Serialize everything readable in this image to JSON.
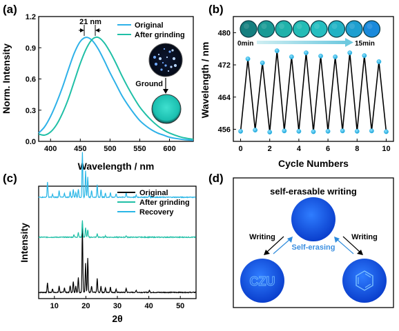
{
  "colors": {
    "original": "#2db1e8",
    "ground": "#1fbfa6",
    "recovery": "#29b6e6",
    "black": "#000000"
  },
  "panels": {
    "a": {
      "label": "(a)",
      "shift_annotation": "21 nm",
      "inset_arrow_label": "Ground",
      "inset_top": "blue-luminescent-crystals-photo",
      "inset_bottom": "cyan-luminescent-powder-photo"
    },
    "b": {
      "label": "(b)",
      "time_start": "0min",
      "time_end": "15min",
      "photo_strip": "eight-sample-photos-blue-to-cyan"
    },
    "c": {
      "label": "(c)"
    },
    "d": {
      "label": "(d)",
      "title": "self-erasable-writing",
      "title_text": "self-erasable writing",
      "left_arrow_label": "Writing",
      "right_arrow_label": "Writing",
      "center_label": "Self-erasing",
      "left_disc_text": "CZU",
      "right_disc_symbol": "benzene-ring-icon"
    }
  },
  "chart_data": [
    {
      "type": "line",
      "panel": "a",
      "xlabel": "Wavelength / nm",
      "ylabel": "Norm. Intensity",
      "xlim": [
        380,
        640
      ],
      "ylim": [
        0,
        1.2
      ],
      "xticks": [
        400,
        450,
        500,
        550,
        600
      ],
      "yticks": [
        0.0,
        0.3,
        0.6,
        0.9,
        1.2
      ],
      "legend_position": "top-right",
      "series": [
        {
          "name": "Original",
          "color": "#2db1e8",
          "x": [
            380,
            390,
            400,
            410,
            420,
            430,
            440,
            450,
            460,
            470,
            480,
            490,
            500,
            510,
            520,
            530,
            540,
            550,
            560,
            570,
            580,
            590,
            600,
            620,
            640
          ],
          "y": [
            0.08,
            0.14,
            0.24,
            0.37,
            0.52,
            0.69,
            0.85,
            0.96,
            1.0,
            0.97,
            0.89,
            0.78,
            0.66,
            0.55,
            0.44,
            0.35,
            0.27,
            0.2,
            0.15,
            0.11,
            0.08,
            0.06,
            0.04,
            0.02,
            0.01
          ]
        },
        {
          "name": "After grinding",
          "color": "#1fbfa6",
          "x": [
            380,
            390,
            400,
            410,
            420,
            430,
            440,
            450,
            460,
            470,
            480,
            490,
            500,
            510,
            520,
            530,
            540,
            550,
            560,
            570,
            580,
            590,
            600,
            620,
            640
          ],
          "y": [
            0.07,
            0.06,
            0.09,
            0.16,
            0.27,
            0.41,
            0.58,
            0.75,
            0.89,
            0.98,
            1.0,
            0.95,
            0.86,
            0.75,
            0.63,
            0.52,
            0.42,
            0.33,
            0.26,
            0.2,
            0.15,
            0.11,
            0.08,
            0.04,
            0.02
          ]
        }
      ]
    },
    {
      "type": "line",
      "panel": "b",
      "xlabel": "Cycle Numbers",
      "ylabel": "Wavelength / nm",
      "xlim": [
        -0.5,
        10.5
      ],
      "ylim": [
        453,
        484
      ],
      "xticks": [
        0,
        2,
        4,
        6,
        8,
        10
      ],
      "yticks": [
        456,
        464,
        472,
        480
      ],
      "series": [
        {
          "name": "",
          "color": "#000000",
          "marker_color": "#29b6e6",
          "x": [
            0,
            0.5,
            1,
            1.5,
            2,
            2.5,
            3,
            3.5,
            4,
            4.5,
            5,
            5.5,
            6,
            6.5,
            7,
            7.5,
            8,
            8.5,
            9,
            9.5,
            10
          ],
          "y": [
            455.5,
            473.5,
            455.8,
            472.5,
            455.3,
            475.5,
            455.6,
            474.0,
            455.5,
            475.0,
            455.4,
            474.2,
            455.5,
            474.0,
            455.6,
            475.0,
            455.5,
            474.3,
            455.6,
            472.8,
            455.4
          ]
        }
      ]
    },
    {
      "type": "line",
      "panel": "c",
      "xlabel": "2θ",
      "ylabel": "Intensity",
      "xlim": [
        5,
        55
      ],
      "xticks": [
        10,
        20,
        30,
        40,
        50
      ],
      "legend_position": "top-right",
      "series": [
        {
          "name": "Original",
          "color": "#000000",
          "offset": 0,
          "baseline": 2,
          "peaks": [
            [
              7.8,
              14
            ],
            [
              9.4,
              5
            ],
            [
              11.5,
              9
            ],
            [
              13.2,
              7
            ],
            [
              15.0,
              10
            ],
            [
              16.0,
              16
            ],
            [
              16.8,
              9
            ],
            [
              17.6,
              22
            ],
            [
              18.9,
              95
            ],
            [
              19.9,
              42
            ],
            [
              20.6,
              50
            ],
            [
              21.8,
              9
            ],
            [
              23.6,
              20
            ],
            [
              24.8,
              9
            ],
            [
              26.2,
              7
            ],
            [
              27.8,
              8
            ],
            [
              29.6,
              5
            ],
            [
              32.8,
              6
            ],
            [
              36.0,
              3
            ],
            [
              40.2,
              3
            ]
          ]
        },
        {
          "name": "After grinding",
          "color": "#1fbfa6",
          "offset": 80,
          "baseline": 2,
          "peaks": [
            [
              16.2,
              4
            ],
            [
              17.6,
              7
            ],
            [
              18.9,
              25
            ],
            [
              19.9,
              14
            ],
            [
              20.6,
              11
            ],
            [
              23.6,
              5
            ],
            [
              26.2,
              2
            ],
            [
              32.8,
              2
            ]
          ]
        },
        {
          "name": "Recovery",
          "color": "#29b6e6",
          "offset": 138,
          "baseline": 2,
          "peaks": [
            [
              7.8,
              22
            ],
            [
              9.4,
              4
            ],
            [
              11.5,
              10
            ],
            [
              13.2,
              6
            ],
            [
              15.0,
              8
            ],
            [
              16.0,
              12
            ],
            [
              16.8,
              7
            ],
            [
              17.6,
              12
            ],
            [
              18.9,
              65
            ],
            [
              19.9,
              38
            ],
            [
              20.6,
              30
            ],
            [
              21.8,
              10
            ],
            [
              23.6,
              18
            ],
            [
              24.8,
              11
            ],
            [
              26.2,
              6
            ],
            [
              27.8,
              7
            ],
            [
              29.6,
              5
            ],
            [
              32.8,
              7
            ],
            [
              36.0,
              3
            ],
            [
              40.2,
              3
            ]
          ]
        }
      ]
    }
  ]
}
